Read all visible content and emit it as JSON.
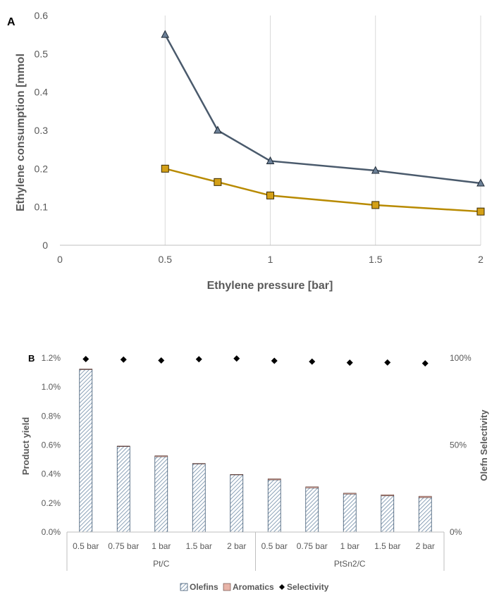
{
  "colors": {
    "series_a1": "#4a5a6c",
    "series_a2": "#b88a00",
    "marker_a2_fill": "#d4a017",
    "olefins_hatch": "#4a6a8a",
    "aromatics": "#e8b4a8",
    "selectivity": "#000000",
    "grid": "#d9d9d9",
    "axis": "#bfbfbf",
    "text": "#595959"
  },
  "chart_data": [
    {
      "panel_label": "A",
      "type": "line",
      "xlabel": "Ethylene pressure [bar]",
      "ylabel": "Ethylene consumption [mmol",
      "xlim": [
        0,
        2
      ],
      "ylim": [
        0,
        0.6
      ],
      "x_ticks": [
        "0",
        "0.5",
        "1",
        "1.5",
        "2"
      ],
      "x_tick_values": [
        0,
        0.5,
        1,
        1.5,
        2
      ],
      "y_ticks": [
        "0",
        "0.1",
        "0.2",
        "0.3",
        "0.4",
        "0.5",
        "0.6"
      ],
      "y_tick_values": [
        0,
        0.1,
        0.2,
        0.3,
        0.4,
        0.5,
        0.6
      ],
      "grid": "vertical",
      "series": [
        {
          "marker": "triangle",
          "x": [
            0.5,
            0.75,
            1,
            1.5,
            2
          ],
          "y": [
            0.55,
            0.3,
            0.22,
            0.195,
            0.162
          ]
        },
        {
          "marker": "square",
          "x": [
            0.5,
            0.75,
            1,
            1.5,
            2
          ],
          "y": [
            0.2,
            0.165,
            0.13,
            0.105,
            0.088
          ]
        }
      ]
    },
    {
      "panel_label": "B",
      "type": "bar",
      "stacked": true,
      "ylabel": "Product yield",
      "y2label": "Olefn Selectivity",
      "ylim": [
        0,
        1.2
      ],
      "y_ticks": [
        "0.0%",
        "0.2%",
        "0.4%",
        "0.6%",
        "0.8%",
        "1.0%",
        "1.2%"
      ],
      "y_tick_values": [
        0,
        0.2,
        0.4,
        0.6,
        0.8,
        1.0,
        1.2
      ],
      "y2lim": [
        0,
        100
      ],
      "y2_ticks": [
        "0%",
        "50%",
        "100%"
      ],
      "y2_tick_values": [
        0,
        50,
        100
      ],
      "categories": [
        "0.5 bar",
        "0.75 bar",
        "1 bar",
        "1.5 bar",
        "2 bar",
        "0.5 bar",
        "0.75 bar",
        "1 bar",
        "1.5 bar",
        "2 bar"
      ],
      "groups": [
        {
          "label": "Pt/C",
          "span": 5
        },
        {
          "label": "PtSn2/C",
          "span": 5
        }
      ],
      "legend": [
        "Olefins",
        "Aromatics",
        "Selectivity"
      ],
      "legend_position": "bottom",
      "series": [
        {
          "name": "Olefins",
          "values": [
            1.12,
            0.59,
            0.52,
            0.47,
            0.395,
            0.36,
            0.305,
            0.262,
            0.25,
            0.238
          ]
        },
        {
          "name": "Aromatics",
          "values": [
            0.004,
            0.003,
            0.006,
            0.003,
            0.002,
            0.007,
            0.007,
            0.006,
            0.007,
            0.009
          ]
        },
        {
          "name": "Selectivity",
          "axis": "secondary",
          "values": [
            99.4,
            99.1,
            98.6,
            99.3,
            99.7,
            98.4,
            97.9,
            97.3,
            97.4,
            96.9
          ]
        }
      ]
    }
  ]
}
